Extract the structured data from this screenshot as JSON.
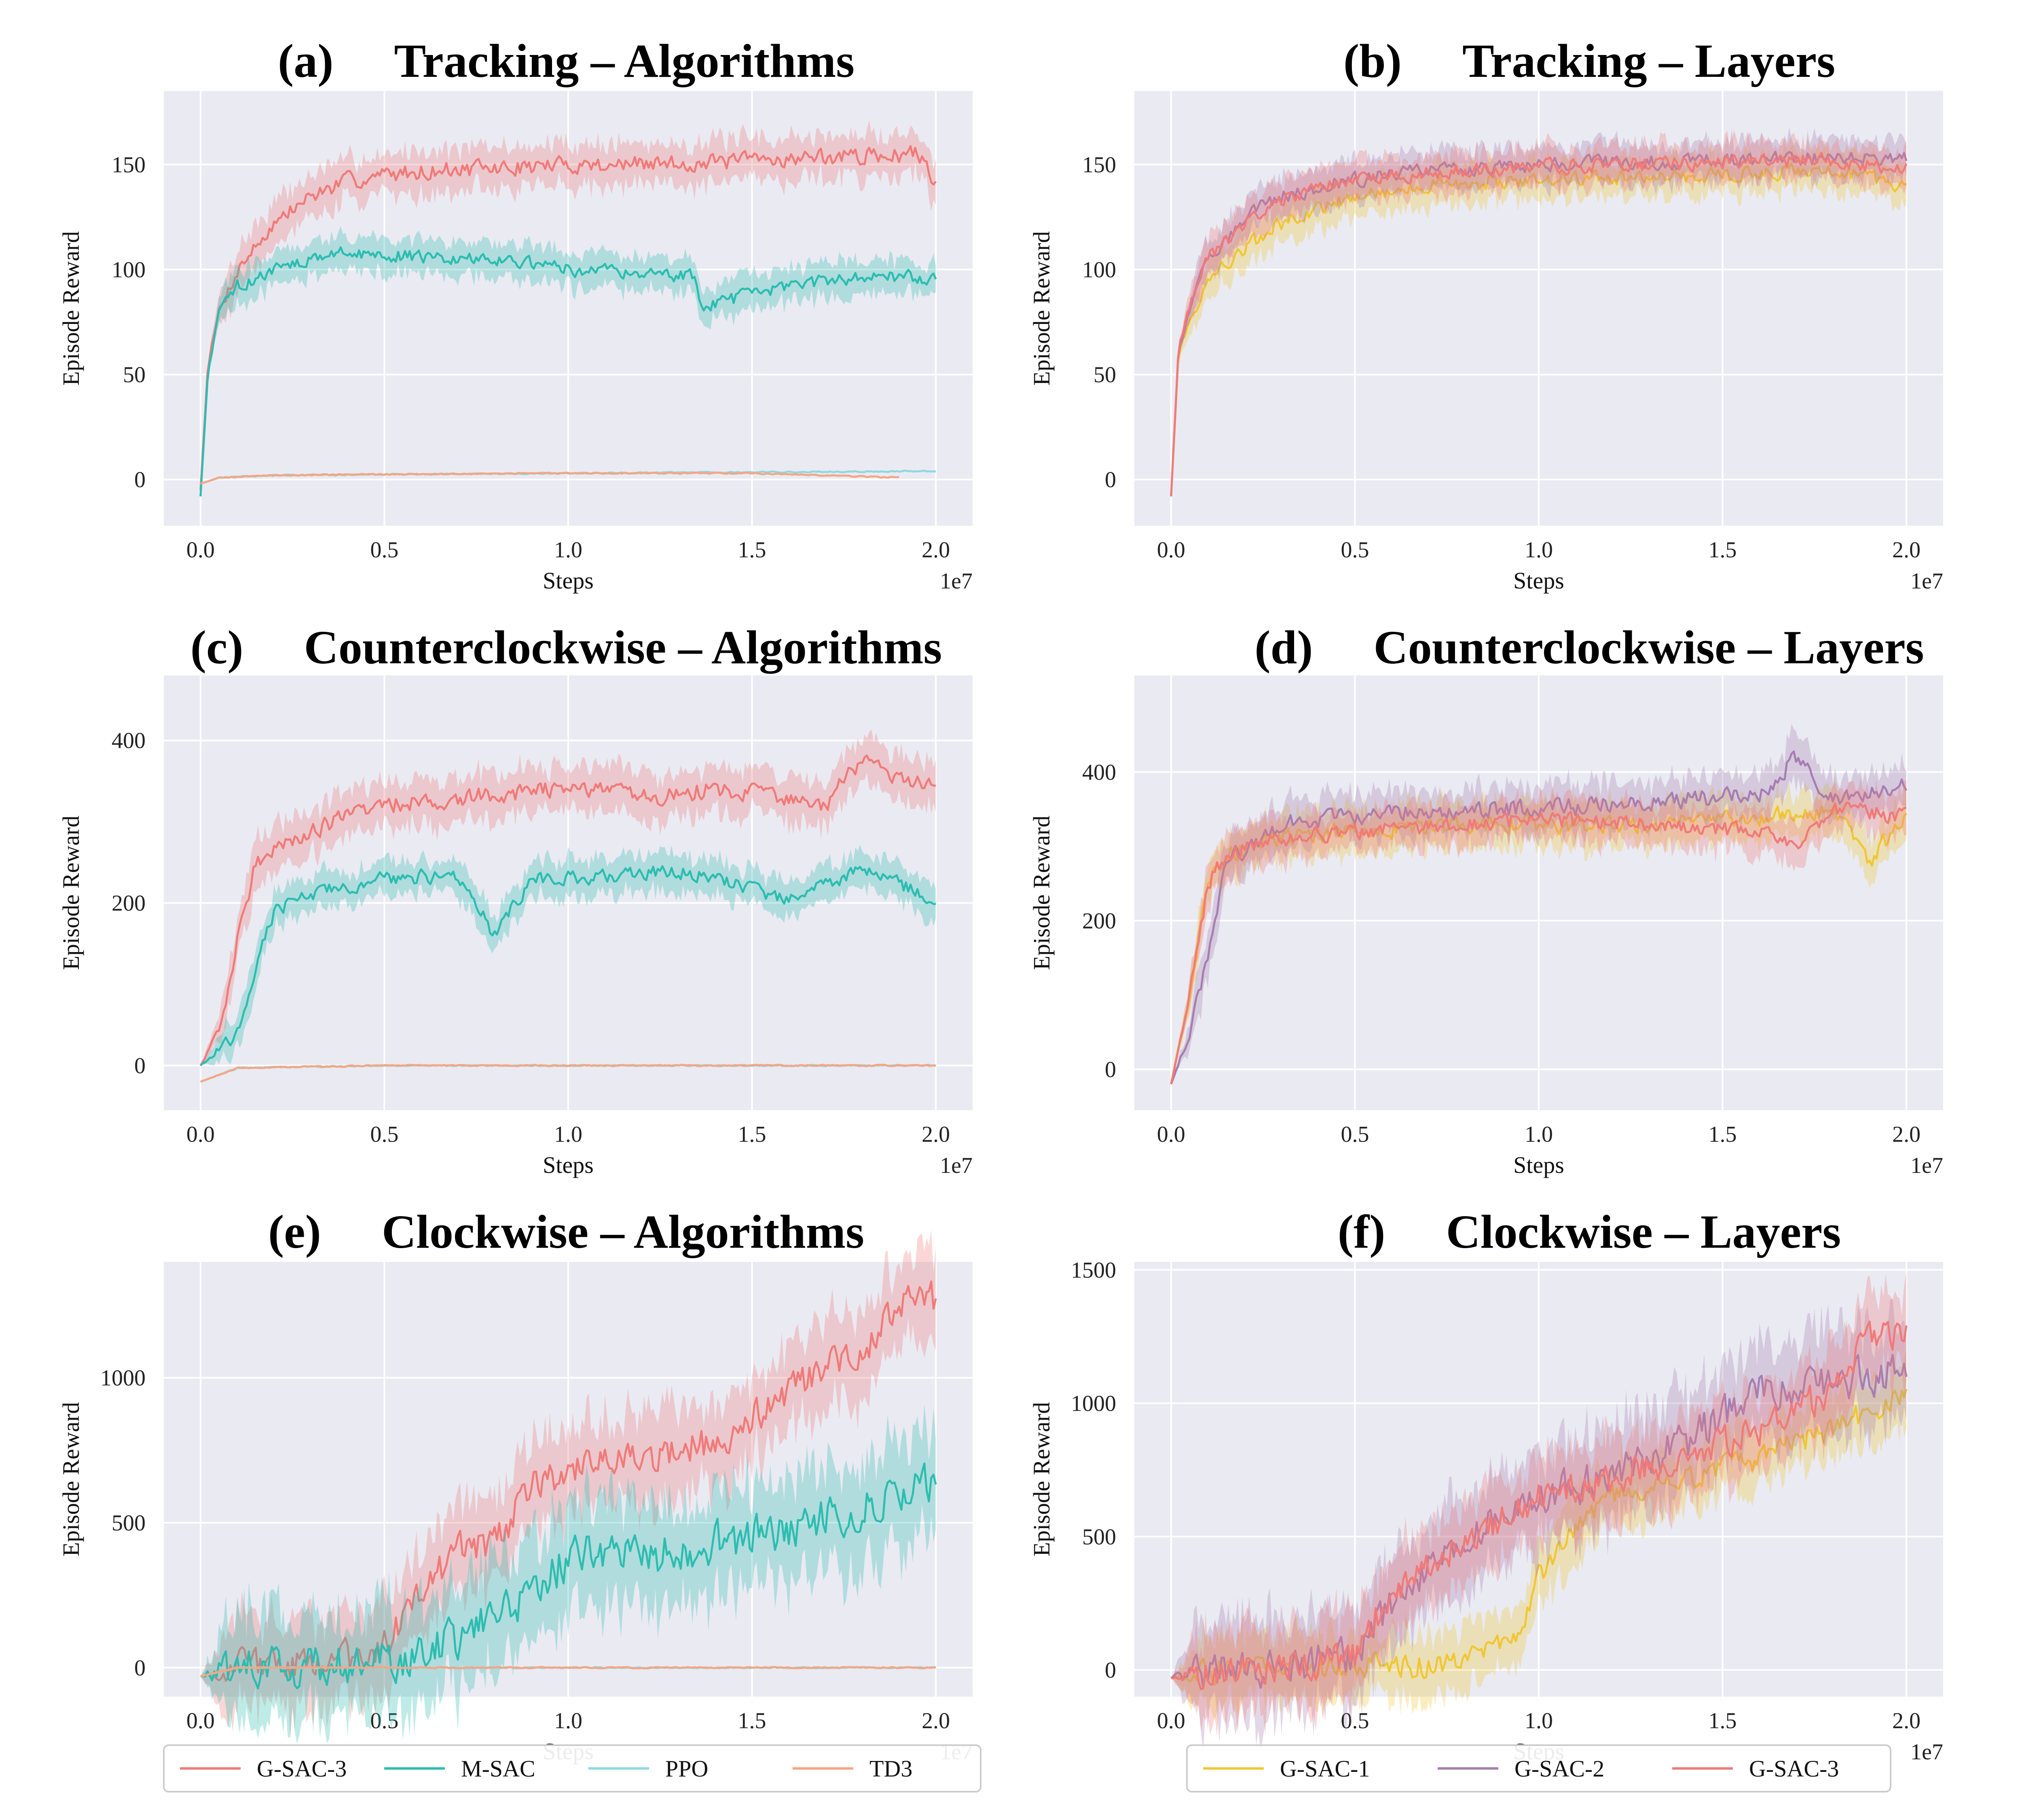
{
  "chart_data": [
    {
      "type": "line",
      "letter": "(a)",
      "title": "Tracking – Algorithms",
      "xlabel": "Steps",
      "ylabel": "Episode Reward",
      "x_multiplier": "1e7",
      "xlim": [
        -0.1,
        2.1
      ],
      "ylim": [
        -22,
        185
      ],
      "xticks": [
        "0.0",
        "0.5",
        "1.0",
        "1.5",
        "2.0"
      ],
      "yticks": [
        "0",
        "50",
        "100",
        "150"
      ],
      "grid": true,
      "series": [
        {
          "name": "G-SAC-3",
          "color": "#f07a78",
          "band": 10,
          "x": [
            0,
            0.02,
            0.05,
            0.1,
            0.2,
            0.3,
            0.4,
            0.5,
            0.6,
            0.8,
            1.0,
            1.2,
            1.4,
            1.6,
            1.8,
            1.95,
            2.0
          ],
          "y": [
            -5,
            55,
            80,
            100,
            122,
            135,
            142,
            145,
            147,
            148,
            150,
            150,
            151,
            153,
            154,
            155,
            142
          ]
        },
        {
          "name": "M-SAC",
          "color": "#2bbdb0",
          "band": 8,
          "x": [
            0,
            0.02,
            0.05,
            0.1,
            0.2,
            0.3,
            0.4,
            0.5,
            0.6,
            0.8,
            1.0,
            1.2,
            1.34,
            1.36,
            1.5,
            1.6,
            1.8,
            2.0
          ],
          "y": [
            -8,
            50,
            80,
            92,
            100,
            105,
            108,
            107,
            106,
            105,
            100,
            98,
            97,
            82,
            88,
            92,
            97,
            96
          ]
        },
        {
          "name": "PPO",
          "color": "#8fd8e0",
          "band": 0,
          "x": [
            0,
            0.05,
            0.2,
            0.5,
            1.0,
            1.5,
            2.0
          ],
          "y": [
            -2,
            1,
            2,
            2.5,
            3,
            3.5,
            4
          ]
        },
        {
          "name": "TD3",
          "color": "#f4a683",
          "band": 0,
          "x": [
            0,
            0.05,
            0.2,
            0.5,
            1.0,
            1.5,
            1.9
          ],
          "y": [
            -2,
            1,
            2,
            2.5,
            3,
            3,
            1
          ]
        }
      ]
    },
    {
      "type": "line",
      "letter": "(b)",
      "title": "Tracking – Layers",
      "xlabel": "Steps",
      "ylabel": "Episode Reward",
      "x_multiplier": "1e7",
      "xlim": [
        -0.1,
        2.1
      ],
      "ylim": [
        -22,
        185
      ],
      "xticks": [
        "0.0",
        "0.5",
        "1.0",
        "1.5",
        "2.0"
      ],
      "yticks": [
        "0",
        "50",
        "100",
        "150"
      ],
      "grid": true,
      "series": [
        {
          "name": "G-SAC-1",
          "color": "#f0c733",
          "band": 9,
          "x": [
            0,
            0.02,
            0.05,
            0.1,
            0.2,
            0.3,
            0.5,
            0.7,
            1.0,
            1.5,
            1.8,
            2.0
          ],
          "y": [
            -8,
            60,
            75,
            95,
            110,
            122,
            135,
            140,
            143,
            145,
            147,
            140
          ]
        },
        {
          "name": "G-SAC-2",
          "color": "#a67db0",
          "band": 9,
          "x": [
            0,
            0.02,
            0.05,
            0.1,
            0.2,
            0.3,
            0.5,
            0.7,
            1.0,
            1.5,
            1.8,
            2.0
          ],
          "y": [
            -8,
            62,
            80,
            105,
            125,
            135,
            143,
            147,
            150,
            152,
            153,
            152
          ]
        },
        {
          "name": "G-SAC-3",
          "color": "#f07a78",
          "band": 9,
          "x": [
            0,
            0.02,
            0.05,
            0.1,
            0.2,
            0.3,
            0.5,
            0.7,
            1.0,
            1.5,
            1.8,
            2.0
          ],
          "y": [
            -8,
            62,
            82,
            105,
            122,
            133,
            143,
            146,
            149,
            151,
            152,
            148
          ]
        }
      ]
    },
    {
      "type": "line",
      "letter": "(c)",
      "title": "Counterclockwise – Algorithms",
      "xlabel": "Steps",
      "ylabel": "Episode Reward",
      "x_multiplier": "1e7",
      "xlim": [
        -0.1,
        2.1
      ],
      "ylim": [
        -55,
        480
      ],
      "xticks": [
        "0.0",
        "0.5",
        "1.0",
        "1.5",
        "2.0"
      ],
      "yticks": [
        "0",
        "200",
        "400"
      ],
      "grid": true,
      "series": [
        {
          "name": "G-SAC-3",
          "color": "#f07a78",
          "band": 28,
          "x": [
            0,
            0.05,
            0.1,
            0.15,
            0.2,
            0.3,
            0.5,
            0.7,
            1.0,
            1.2,
            1.4,
            1.6,
            1.7,
            1.8,
            1.9,
            2.0
          ],
          "y": [
            0,
            40,
            150,
            250,
            270,
            290,
            320,
            330,
            340,
            330,
            340,
            330,
            320,
            380,
            350,
            340
          ]
        },
        {
          "name": "M-SAC",
          "color": "#2bbdb0",
          "band": 22,
          "x": [
            0,
            0.1,
            0.15,
            0.2,
            0.3,
            0.5,
            0.7,
            0.8,
            0.9,
            1.0,
            1.3,
            1.6,
            1.8,
            2.0
          ],
          "y": [
            0,
            40,
            120,
            190,
            210,
            230,
            235,
            160,
            230,
            230,
            240,
            205,
            240,
            205
          ]
        },
        {
          "name": "PPO",
          "color": "#8fd8e0",
          "band": 0,
          "x": [
            0,
            0.1,
            0.5,
            1.0,
            1.5,
            2.0
          ],
          "y": [
            -20,
            -3,
            0,
            0,
            0,
            0
          ]
        },
        {
          "name": "TD3",
          "color": "#f4a683",
          "band": 0,
          "x": [
            0,
            0.1,
            0.5,
            1.0,
            1.5,
            2.0
          ],
          "y": [
            -20,
            -3,
            0,
            0,
            0,
            0
          ]
        }
      ]
    },
    {
      "type": "line",
      "letter": "(d)",
      "title": "Counterclockwise – Layers",
      "xlabel": "Steps",
      "ylabel": "Episode Reward",
      "x_multiplier": "1e7",
      "xlim": [
        -0.1,
        2.1
      ],
      "ylim": [
        -55,
        530
      ],
      "xticks": [
        "0.0",
        "0.5",
        "1.0",
        "1.5",
        "2.0"
      ],
      "yticks": [
        "0",
        "200",
        "400"
      ],
      "grid": true,
      "series": [
        {
          "name": "G-SAC-1",
          "color": "#f0c733",
          "band": 30,
          "x": [
            0,
            0.05,
            0.1,
            0.15,
            0.3,
            0.5,
            0.8,
            1.0,
            1.3,
            1.6,
            1.8,
            1.9,
            2.0
          ],
          "y": [
            -20,
            100,
            250,
            290,
            310,
            320,
            330,
            330,
            330,
            340,
            350,
            280,
            340
          ]
        },
        {
          "name": "G-SAC-2",
          "color": "#a67db0",
          "band": 30,
          "x": [
            0,
            0.05,
            0.1,
            0.15,
            0.3,
            0.5,
            0.8,
            1.0,
            1.3,
            1.6,
            1.7,
            1.8,
            2.0
          ],
          "y": [
            -20,
            50,
            150,
            280,
            330,
            340,
            350,
            350,
            360,
            370,
            420,
            360,
            380
          ]
        },
        {
          "name": "G-SAC-3",
          "color": "#f07a78",
          "band": 28,
          "x": [
            0,
            0.05,
            0.1,
            0.15,
            0.3,
            0.5,
            0.8,
            1.0,
            1.3,
            1.6,
            1.7,
            1.8,
            2.0
          ],
          "y": [
            -20,
            100,
            250,
            290,
            310,
            320,
            330,
            335,
            330,
            320,
            300,
            350,
            340
          ]
        }
      ]
    },
    {
      "type": "line",
      "letter": "(e)",
      "title": "Clockwise – Algorithms",
      "xlabel": "Steps",
      "ylabel": "Episode Reward",
      "x_multiplier": "1e7",
      "xlim": [
        -0.1,
        2.1
      ],
      "ylim": [
        -100,
        1400
      ],
      "xticks": [
        "0.0",
        "0.5",
        "1.0",
        "1.5",
        "2.0"
      ],
      "yticks": [
        "0",
        "500",
        "1000"
      ],
      "grid": true,
      "series": [
        {
          "name": "G-SAC-3",
          "color": "#f07a78",
          "band": 150,
          "x": [
            0,
            0.1,
            0.3,
            0.4,
            0.5,
            0.6,
            0.7,
            0.8,
            0.9,
            1.0,
            1.2,
            1.4,
            1.6,
            1.8,
            1.9,
            2.0
          ],
          "y": [
            -30,
            0,
            10,
            30,
            80,
            250,
            400,
            430,
            620,
            680,
            720,
            780,
            950,
            1100,
            1250,
            1270
          ]
        },
        {
          "name": "M-SAC",
          "color": "#2bbdb0",
          "band": 180,
          "x": [
            0,
            0.1,
            0.3,
            0.5,
            0.6,
            0.7,
            0.8,
            0.9,
            1.0,
            1.05,
            1.2,
            1.5,
            1.8,
            2.0
          ],
          "y": [
            -30,
            0,
            10,
            20,
            50,
            100,
            180,
            260,
            380,
            420,
            380,
            450,
            550,
            660
          ]
        },
        {
          "name": "PPO",
          "color": "#8fd8e0",
          "band": 0,
          "x": [
            0,
            0.1,
            0.5,
            1.0,
            1.5,
            2.0
          ],
          "y": [
            -30,
            0,
            0,
            0,
            0,
            0
          ]
        },
        {
          "name": "TD3",
          "color": "#f4a683",
          "band": 0,
          "x": [
            0,
            0.1,
            0.5,
            1.0,
            1.5,
            2.0
          ],
          "y": [
            -30,
            0,
            0,
            0,
            0,
            0
          ]
        }
      ]
    },
    {
      "type": "line",
      "letter": "(f)",
      "title": "Clockwise – Layers",
      "xlabel": "Steps",
      "ylabel": "Episode Reward",
      "x_multiplier": "1e7",
      "xlim": [
        -0.1,
        2.1
      ],
      "ylim": [
        -100,
        1530
      ],
      "xticks": [
        "0.0",
        "0.5",
        "1.0",
        "1.5",
        "2.0"
      ],
      "yticks": [
        "0",
        "500",
        "1000",
        "1500"
      ],
      "grid": true,
      "series": [
        {
          "name": "G-SAC-1",
          "color": "#f0c733",
          "band": 120,
          "x": [
            0,
            0.1,
            0.3,
            0.5,
            0.7,
            0.85,
            0.95,
            1.0,
            1.1,
            1.2,
            1.5,
            1.8,
            2.0
          ],
          "y": [
            -30,
            0,
            5,
            10,
            20,
            50,
            150,
            350,
            550,
            650,
            750,
            900,
            1050
          ]
        },
        {
          "name": "G-SAC-2",
          "color": "#a67db0",
          "band": 180,
          "x": [
            0,
            0.1,
            0.3,
            0.5,
            0.6,
            0.8,
            1.0,
            1.2,
            1.4,
            1.6,
            1.8,
            2.0
          ],
          "y": [
            -30,
            0,
            10,
            60,
            250,
            480,
            650,
            730,
            850,
            1050,
            1080,
            1120
          ]
        },
        {
          "name": "G-SAC-3",
          "color": "#f07a78",
          "band": 150,
          "x": [
            0,
            0.1,
            0.3,
            0.5,
            0.6,
            0.8,
            1.0,
            1.2,
            1.4,
            1.6,
            1.8,
            1.9,
            2.0
          ],
          "y": [
            -30,
            0,
            10,
            50,
            300,
            480,
            650,
            720,
            800,
            900,
            1050,
            1250,
            1260
          ]
        }
      ]
    }
  ],
  "legends": [
    {
      "entries": [
        {
          "label": "G-SAC-3",
          "color": "#f07a78"
        },
        {
          "label": "M-SAC",
          "color": "#2bbdb0"
        },
        {
          "label": "PPO",
          "color": "#8fd8e0"
        },
        {
          "label": "TD3",
          "color": "#f4a683"
        }
      ]
    },
    {
      "entries": [
        {
          "label": "G-SAC-1",
          "color": "#f0c733"
        },
        {
          "label": "G-SAC-2",
          "color": "#a67db0"
        },
        {
          "label": "G-SAC-3",
          "color": "#f07a78"
        }
      ]
    }
  ],
  "colors": {
    "panel_bg": "#eaeaf2",
    "grid": "#ffffff"
  }
}
